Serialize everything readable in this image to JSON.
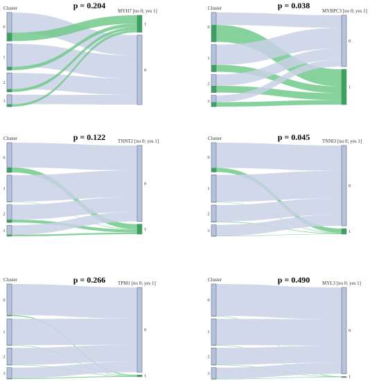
{
  "colors": {
    "link_no": "#c9d1e6",
    "link_yes": "#71c98b",
    "node_fill": "#b6c1dc",
    "node_stroke": "#6f7a96",
    "yes_node": "#3aa35a"
  },
  "chart_data": [
    {
      "type": "sankey",
      "title": "p = 0.204",
      "left_label": "Cluster",
      "right_label": "MYH7 [no 0; yes 1]",
      "clusters": [
        "0",
        "1",
        "2",
        "3"
      ],
      "targets": [
        "0",
        "1"
      ],
      "cluster_totals": [
        1.2,
        1.1,
        0.8,
        0.5
      ],
      "yes_counts": [
        0.35,
        0.14,
        0.12,
        0.1
      ]
    },
    {
      "type": "sankey",
      "title": "p = 0.038",
      "left_label": "Cluster",
      "right_label": "MYBPC3 [no 0; yes 1]",
      "clusters": [
        "0",
        "1",
        "2",
        "3"
      ],
      "targets": [
        "0",
        "1"
      ],
      "cluster_totals": [
        1.3,
        1.2,
        0.8,
        0.5
      ],
      "yes_counts": [
        0.75,
        0.3,
        0.3,
        0.2
      ]
    },
    {
      "type": "sankey",
      "title": "p = 0.122",
      "left_label": "Cluster",
      "right_label": "TNNT2 [no 0; yes 1]",
      "clusters": [
        "0",
        "1",
        "2",
        "3"
      ],
      "targets": [
        "0",
        "1"
      ],
      "cluster_totals": [
        1.5,
        1.35,
        0.9,
        0.55
      ],
      "yes_counts": [
        0.25,
        0.02,
        0.15,
        0.08
      ]
    },
    {
      "type": "sankey",
      "title": "p = 0.045",
      "left_label": "Cluster",
      "right_label": "TNNI3 [no 0; yes 1]",
      "clusters": [
        "0",
        "1",
        "2",
        "3"
      ],
      "targets": [
        "0",
        "1"
      ],
      "cluster_totals": [
        1.55,
        1.45,
        0.9,
        0.6
      ],
      "yes_counts": [
        0.22,
        0.02,
        0.03,
        0.02
      ]
    },
    {
      "type": "sankey",
      "title": "p = 0.266",
      "left_label": "Cluster",
      "right_label": "TPM1 [no 0; yes 1]",
      "clusters": [
        "0",
        "1",
        "2",
        "3"
      ],
      "targets": [
        "0",
        "1"
      ],
      "cluster_totals": [
        1.7,
        1.4,
        0.9,
        0.6
      ],
      "yes_counts": [
        0.05,
        0.005,
        0.005,
        0.04
      ]
    },
    {
      "type": "sankey",
      "title": "p = 0.490",
      "left_label": "Cluster",
      "right_label": "MYL3 [no 0; yes 1]",
      "clusters": [
        "0",
        "1",
        "2",
        "3"
      ],
      "targets": [
        "0",
        "1"
      ],
      "cluster_totals": [
        1.7,
        1.4,
        0.9,
        0.6
      ],
      "yes_counts": [
        0.005,
        0.005,
        0.005,
        0.005
      ]
    }
  ]
}
